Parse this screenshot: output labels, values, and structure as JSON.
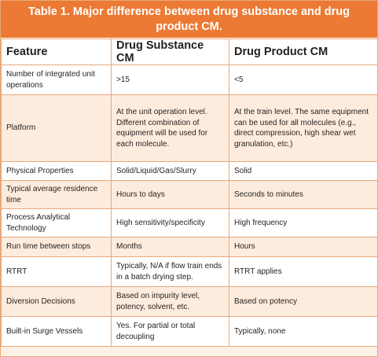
{
  "table": {
    "caption": "Table 1. Major difference between drug substance and drug product CM.",
    "headers": [
      "Feature",
      "Drug Substance CM",
      "Drug Product CM"
    ],
    "rows": [
      [
        "Number of integrated unit operations",
        ">15",
        "<5"
      ],
      [
        "Platform",
        "At the unit operation level. Different combination of equipment will be used for each molecule.",
        "At the train level. The same equipment can be used for all molecules (e.g., direct compression, high shear wet granulation, etc.)"
      ],
      [
        "Physical Properties",
        "Solid/Liquid/Gas/Slurry",
        "Solid"
      ],
      [
        "Typical average residence time",
        "Hours to days",
        "Seconds to minutes"
      ],
      [
        "Process Analytical Technology",
        "High sensitivity/specificity",
        "High frequency"
      ],
      [
        "Run time between stops",
        "Months",
        "Hours"
      ],
      [
        "RTRT",
        "Typically, N/A if flow train ends in a batch drying step.",
        "RTRT applies"
      ],
      [
        "Diversion Decisions",
        "Based on impurity level, potency, solvent, etc.",
        "Based on potency"
      ],
      [
        "Built-in Surge Vessels",
        "Yes. For partial or total decoupling",
        "Typically, none"
      ]
    ]
  },
  "colors": {
    "caption_background": "#ec7a34",
    "caption_text": "#ffffff",
    "border": "#e8a87a",
    "alt_row": "#fdecdd",
    "row": "#ffffff",
    "text": "#231f20"
  }
}
